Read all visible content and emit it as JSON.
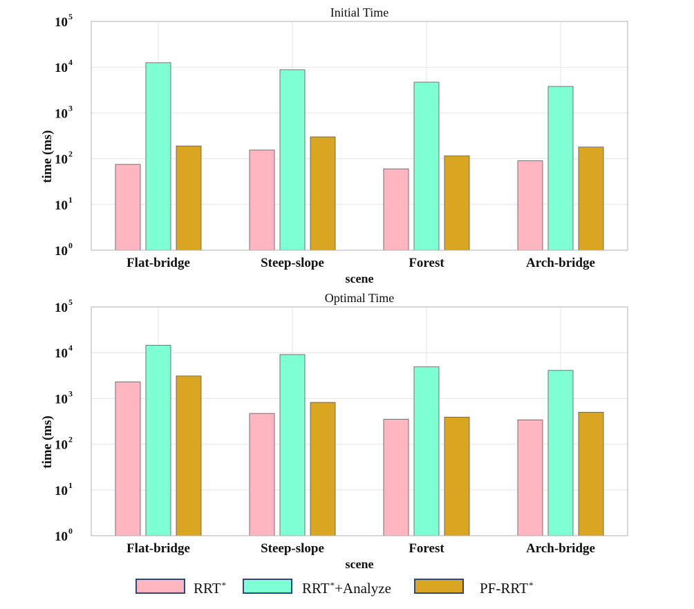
{
  "chart_data": [
    {
      "type": "bar",
      "title": "Initial Time",
      "xlabel": "scene",
      "ylabel": "time (ms)",
      "yscale": "log",
      "ylim": [
        1,
        100000
      ],
      "y_ticks": [
        {
          "base": "10",
          "exp": "0"
        },
        {
          "base": "10",
          "exp": "1"
        },
        {
          "base": "10",
          "exp": "2"
        },
        {
          "base": "10",
          "exp": "3"
        },
        {
          "base": "10",
          "exp": "4"
        },
        {
          "base": "10",
          "exp": "5"
        }
      ],
      "grid": true,
      "categories": [
        "Flat-bridge",
        "Steep-slope",
        "Forest",
        "Arch-bridge"
      ],
      "series": [
        {
          "name": "RRT*",
          "values": [
            75,
            155,
            60,
            90
          ]
        },
        {
          "name": "RRT*+Analyze",
          "values": [
            12500,
            8800,
            4700,
            3800
          ]
        },
        {
          "name": "PF-RRT*",
          "values": [
            190,
            300,
            115,
            180
          ]
        }
      ]
    },
    {
      "type": "bar",
      "title": "Optimal Time",
      "xlabel": "scene",
      "ylabel": "time (ms)",
      "yscale": "log",
      "ylim": [
        1,
        100000
      ],
      "y_ticks": [
        {
          "base": "10",
          "exp": "0"
        },
        {
          "base": "10",
          "exp": "1"
        },
        {
          "base": "10",
          "exp": "2"
        },
        {
          "base": "10",
          "exp": "3"
        },
        {
          "base": "10",
          "exp": "4"
        },
        {
          "base": "10",
          "exp": "5"
        }
      ],
      "grid": true,
      "categories": [
        "Flat-bridge",
        "Steep-slope",
        "Forest",
        "Arch-bridge"
      ],
      "series": [
        {
          "name": "RRT*",
          "values": [
            2300,
            470,
            350,
            340
          ]
        },
        {
          "name": "RRT*+Analyze",
          "values": [
            14500,
            9100,
            4900,
            4100
          ]
        },
        {
          "name": "PF-RRT*",
          "values": [
            3100,
            820,
            390,
            500
          ]
        }
      ]
    }
  ],
  "legend": {
    "placement": "bottom",
    "items": [
      {
        "base": "RRT",
        "sup": "*",
        "suffix": "",
        "color": "#ffb6c1"
      },
      {
        "base": "RRT",
        "sup": "*",
        "suffix": "+Analyze",
        "color": "#7fffd4"
      },
      {
        "base": "PF-RRT",
        "sup": "*",
        "suffix": "",
        "color": "#daa520"
      }
    ]
  }
}
